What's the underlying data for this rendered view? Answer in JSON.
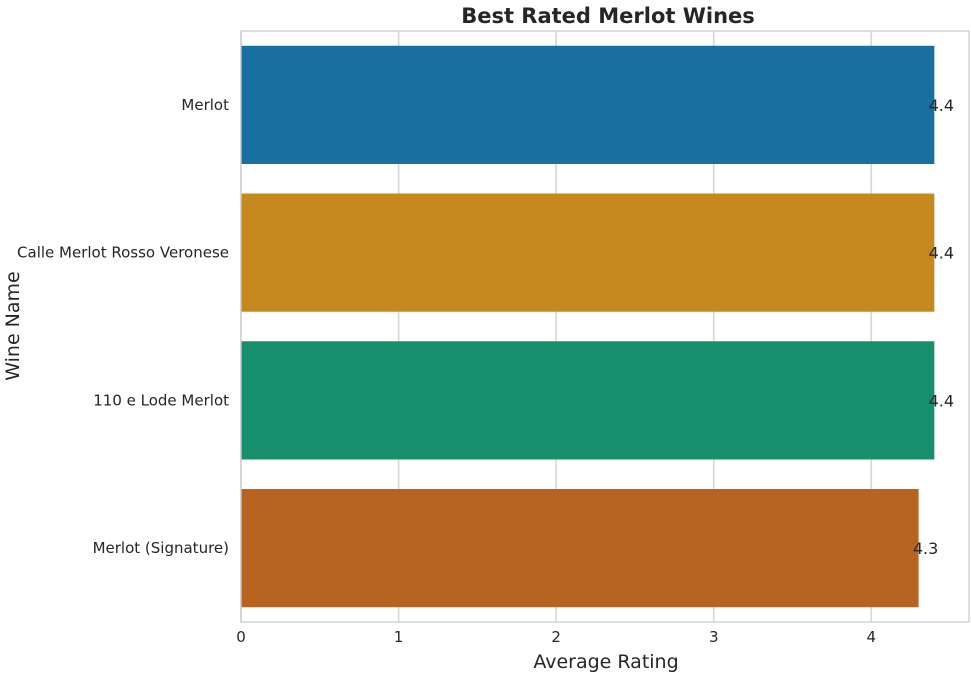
{
  "chart_data": {
    "type": "bar",
    "orientation": "horizontal",
    "title": "Best Rated Merlot Wines",
    "xlabel": "Average Rating",
    "ylabel": "Wine Name",
    "categories": [
      "Merlot",
      "Calle Merlot Rosso Veronese",
      "110 e Lode Merlot",
      "Merlot (Signature)"
    ],
    "values": [
      4.4,
      4.4,
      4.4,
      4.3
    ],
    "data_labels": [
      "4.4",
      "4.4",
      "4.4",
      "4.3"
    ],
    "colors": [
      "#1770a0",
      "#c4881f",
      "#178e6c",
      "#b8631f"
    ],
    "xticks": [
      0,
      1,
      2,
      3,
      4
    ],
    "xlim": [
      0,
      4.62
    ],
    "grid": true,
    "grid_axis": "x"
  }
}
